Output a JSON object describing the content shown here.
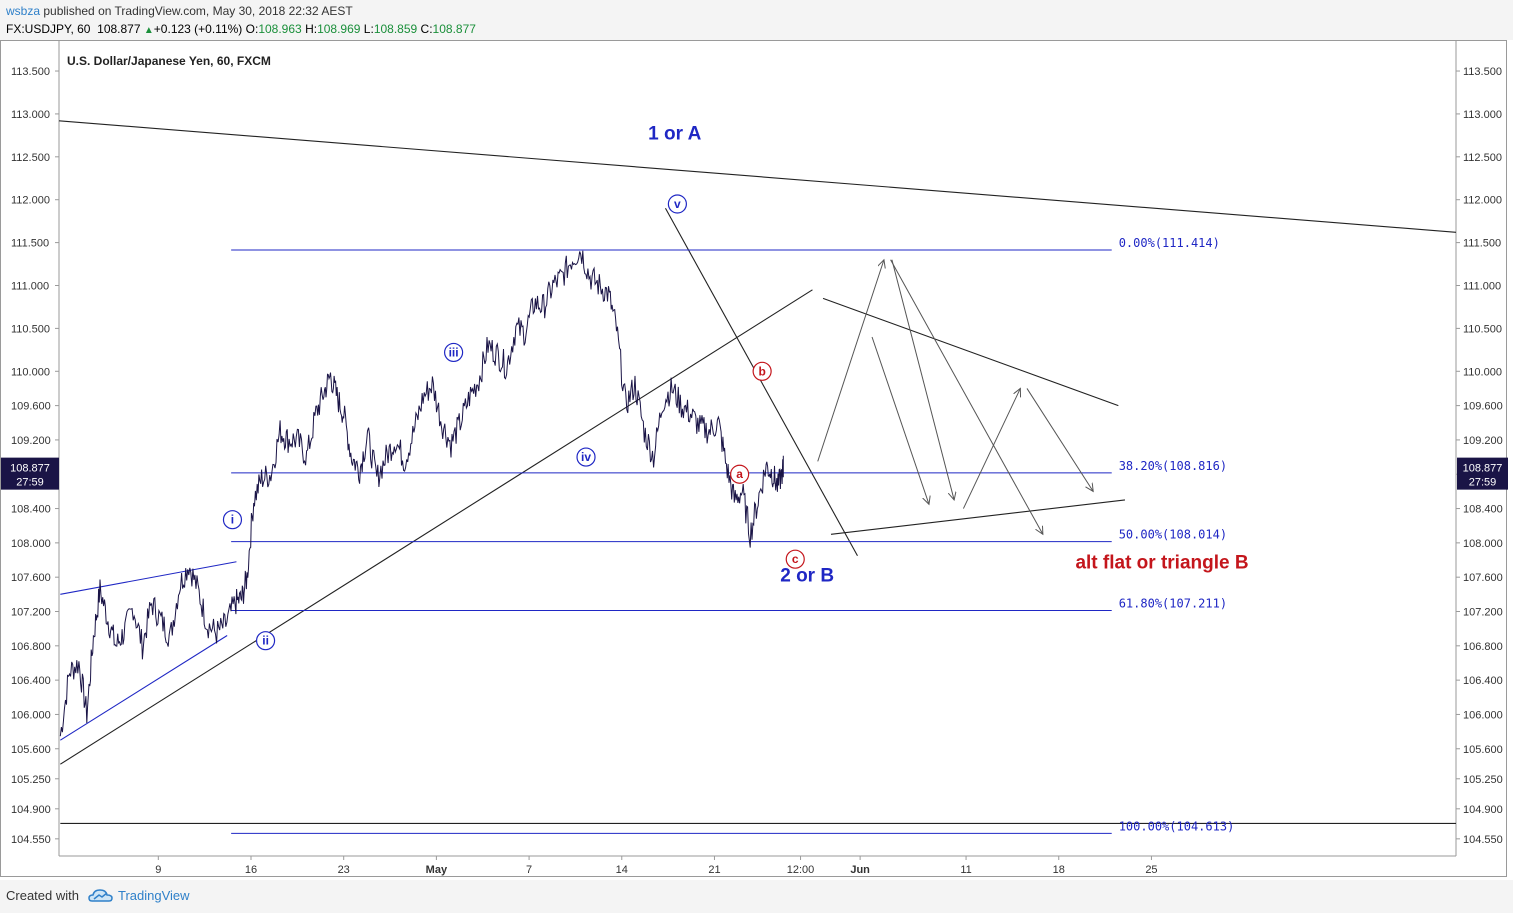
{
  "header": {
    "author": "wsbza",
    "published": "published on TradingView.com, May 30, 2018 22:32 AEST",
    "symbol_line": "FX:USDJPY, 60",
    "last": "108.877",
    "change": "+0.123 (+0.11%)",
    "open_label": "O:",
    "open": "108.963",
    "high_label": "H:",
    "high": "108.969",
    "low_label": "L:",
    "low": "108.859",
    "close_label": "C:",
    "close": "108.877"
  },
  "footer": {
    "created_with": "Created with",
    "brand": "TradingView",
    "logo_icon": "tradingview-cloud-icon"
  },
  "colors": {
    "candles": "#1a1446",
    "fib": "#1f27c4",
    "wave_blue": "#1f27c4",
    "wave_red": "#c4161c",
    "trend": "#222222",
    "projection": "#555555",
    "price_tag": "#1a1446"
  },
  "chart_data": {
    "type": "line",
    "title": "U.S. Dollar/Japanese Yen, 60, FXCM",
    "ylim": [
      104.35,
      113.85
    ],
    "y_ticks": [
      "113.500",
      "113.000",
      "112.500",
      "112.000",
      "111.500",
      "111.000",
      "110.500",
      "110.000",
      "109.600",
      "109.200",
      "108.800",
      "108.400",
      "108.000",
      "107.600",
      "107.200",
      "106.800",
      "106.400",
      "106.000",
      "105.600",
      "105.250",
      "104.900",
      "104.550"
    ],
    "x_ticks": [
      "9",
      "16",
      "23",
      "May",
      "7",
      "14",
      "21",
      "12:00",
      "Jun",
      "11",
      "18",
      "25"
    ],
    "x_ticks_pos": [
      9,
      16,
      23,
      30,
      37,
      44,
      51,
      57.5,
      62,
      70,
      77,
      84
    ],
    "x_range": [
      1.5,
      107
    ],
    "last_price_tag": {
      "price": "108.877",
      "countdown": "27:59",
      "value": 108.877
    },
    "price_series": {
      "name": "USDJPY",
      "x": [
        1.6,
        2.3,
        3,
        3.6,
        4.1,
        4.6,
        5.2,
        5.8,
        6.4,
        7.1,
        7.8,
        8.5,
        9.2,
        9.9,
        10.6,
        11.3,
        12,
        12.7,
        13.4,
        14.1,
        14.8,
        15.3,
        15.7,
        16.2,
        16.8,
        17.5,
        18.2,
        18.8,
        19.5,
        20.2,
        20.9,
        21.5,
        22,
        22.5,
        23,
        23.6,
        24.2,
        24.8,
        25.5,
        26.2,
        26.9,
        27.6,
        28.3,
        29,
        29.7,
        30.4,
        31.1,
        31.8,
        32.5,
        33.2,
        33.9,
        34.6,
        35.3,
        36,
        36.7,
        37.4,
        38.1,
        38.8,
        39.5,
        40.2,
        40.9,
        41.6,
        42.3,
        43,
        43.6,
        44.3,
        45,
        45.7,
        46.4,
        47.1,
        47.8,
        48.5,
        49.2,
        49.9,
        50.6,
        51.3,
        51.9,
        52.5,
        53.1,
        53.7,
        54.3,
        54.9,
        55.4,
        55.8,
        56.2,
        56.7,
        57.2,
        57.7,
        58.2,
        58.7,
        59.2,
        59.6,
        60,
        60.3,
        60.7
      ],
      "y": [
        105.75,
        106.5,
        106.6,
        106.0,
        106.9,
        107.45,
        107.1,
        106.8,
        106.95,
        107.25,
        106.8,
        107.3,
        107.1,
        106.9,
        107.5,
        107.75,
        107.45,
        107.05,
        106.95,
        107.05,
        107.3,
        107.35,
        107.6,
        108.5,
        108.75,
        108.8,
        109.3,
        109.2,
        109.2,
        109.0,
        109.5,
        109.75,
        109.95,
        109.7,
        109.5,
        109.0,
        108.85,
        109.25,
        108.75,
        109.0,
        109.2,
        108.95,
        109.3,
        109.7,
        109.85,
        109.4,
        109.15,
        109.4,
        109.7,
        109.9,
        110.3,
        110.2,
        110.05,
        110.5,
        110.45,
        110.8,
        110.75,
        111.0,
        111.1,
        111.3,
        111.414,
        111.1,
        111.0,
        110.9,
        110.5,
        109.6,
        109.85,
        109.3,
        109.0,
        109.65,
        109.8,
        109.6,
        109.5,
        109.35,
        109.3,
        109.4,
        108.9,
        108.5,
        108.6,
        108.1,
        108.5,
        108.9,
        108.8,
        108.65,
        108.877,
        108.9,
        108.88,
        108.9,
        108.9,
        108.9,
        108.9,
        108.9,
        108.9,
        108.9,
        108.9
      ],
      "x_end": 56.2
    },
    "fib_levels": [
      {
        "label": "0.00%(111.414)",
        "value": 111.414,
        "x_start": 14.5,
        "x_end": 81
      },
      {
        "label": "38.20%(108.816)",
        "value": 108.816,
        "x_start": 14.5,
        "x_end": 81
      },
      {
        "label": "50.00%(108.014)",
        "value": 108.014,
        "x_start": 14.5,
        "x_end": 81
      },
      {
        "label": "61.80%(107.211)",
        "value": 107.211,
        "x_start": 14.5,
        "x_end": 81
      },
      {
        "label": "100.00%(104.613)",
        "value": 104.613,
        "x_start": 14.5,
        "x_end": 81
      }
    ],
    "trend_lines": [
      {
        "x": [
          1.5,
          107
        ],
        "y": [
          112.92,
          111.62
        ]
      },
      {
        "x": [
          1.6,
          58.4
        ],
        "y": [
          105.42,
          110.95
        ]
      },
      {
        "x": [
          1.6,
          107
        ],
        "y": [
          104.73,
          104.73
        ]
      },
      {
        "x": [
          47.3,
          61.8
        ],
        "y": [
          111.9,
          107.85
        ]
      },
      {
        "x": [
          59.2,
          81.5
        ],
        "y": [
          110.85,
          109.6
        ]
      },
      {
        "x": [
          59.8,
          82
        ],
        "y": [
          108.1,
          108.5
        ]
      }
    ],
    "blue_lines": [
      {
        "x": [
          1.6,
          14.9
        ],
        "y": [
          107.4,
          107.78
        ]
      },
      {
        "x": [
          1.6,
          14.2
        ],
        "y": [
          105.7,
          106.92
        ]
      }
    ],
    "projection_arrows": [
      {
        "x": [
          58.8,
          63.8
        ],
        "y": [
          108.95,
          111.3
        ]
      },
      {
        "x": [
          64.4,
          69.1
        ],
        "y": [
          111.3,
          108.5
        ]
      },
      {
        "x": [
          62.9,
          67.2
        ],
        "y": [
          110.4,
          108.45
        ]
      },
      {
        "x": [
          69.8,
          74.1
        ],
        "y": [
          108.4,
          109.8
        ]
      },
      {
        "x": [
          74.6,
          79.6
        ],
        "y": [
          109.8,
          108.6
        ]
      },
      {
        "x": [
          64.3,
          75.8
        ],
        "y": [
          111.3,
          108.1
        ]
      }
    ],
    "wave_labels": [
      {
        "text": "i",
        "x": 14.6,
        "y": 108.27,
        "color": "blue"
      },
      {
        "text": "ii",
        "x": 17.1,
        "y": 106.86,
        "color": "blue"
      },
      {
        "text": "iii",
        "x": 31.3,
        "y": 110.22,
        "color": "blue"
      },
      {
        "text": "iv",
        "x": 41.3,
        "y": 109.0,
        "color": "blue"
      },
      {
        "text": "v",
        "x": 48.2,
        "y": 111.95,
        "color": "blue"
      },
      {
        "text": "a",
        "x": 52.9,
        "y": 108.8,
        "color": "red"
      },
      {
        "text": "b",
        "x": 54.6,
        "y": 110.0,
        "color": "red"
      },
      {
        "text": "c",
        "x": 57.1,
        "y": 107.81,
        "color": "red"
      }
    ],
    "annotations": [
      {
        "text": "1 or A",
        "x": 48.0,
        "y": 112.7,
        "color": "blue"
      },
      {
        "text": "2 or B",
        "x": 58.0,
        "y": 107.55,
        "color": "blue"
      },
      {
        "text": "alt flat or triangle B",
        "x": 84.8,
        "y": 107.7,
        "color": "red"
      }
    ]
  }
}
